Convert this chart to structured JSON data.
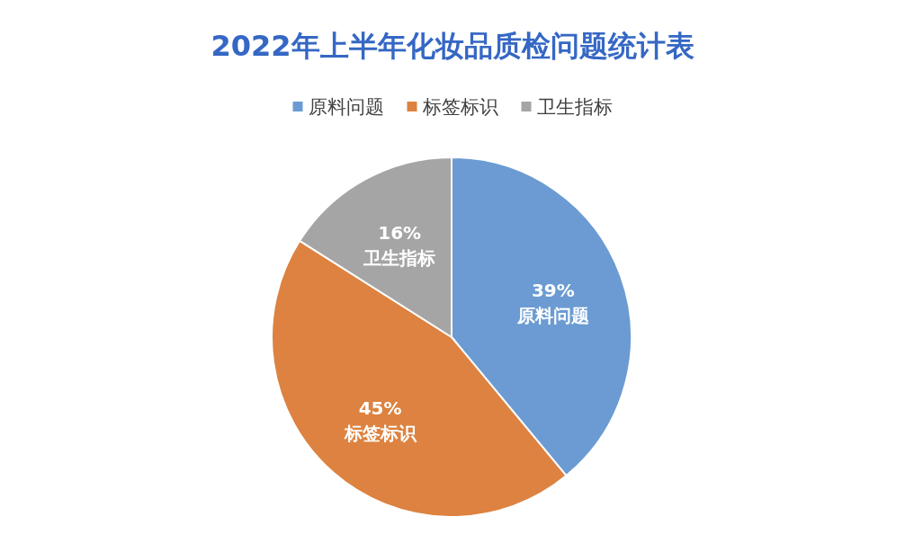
{
  "chart_data": {
    "type": "pie",
    "title": "2022年上半年化妆品质检问题统计表",
    "categories": [
      "原料问题",
      "标签标识",
      "卫生指标"
    ],
    "values": [
      39,
      45,
      16
    ],
    "colors": [
      "#6b9bd2",
      "#dd8240",
      "#a5a5a5"
    ],
    "value_labels": [
      "39%",
      "45%",
      "16%"
    ],
    "legend": "top"
  }
}
